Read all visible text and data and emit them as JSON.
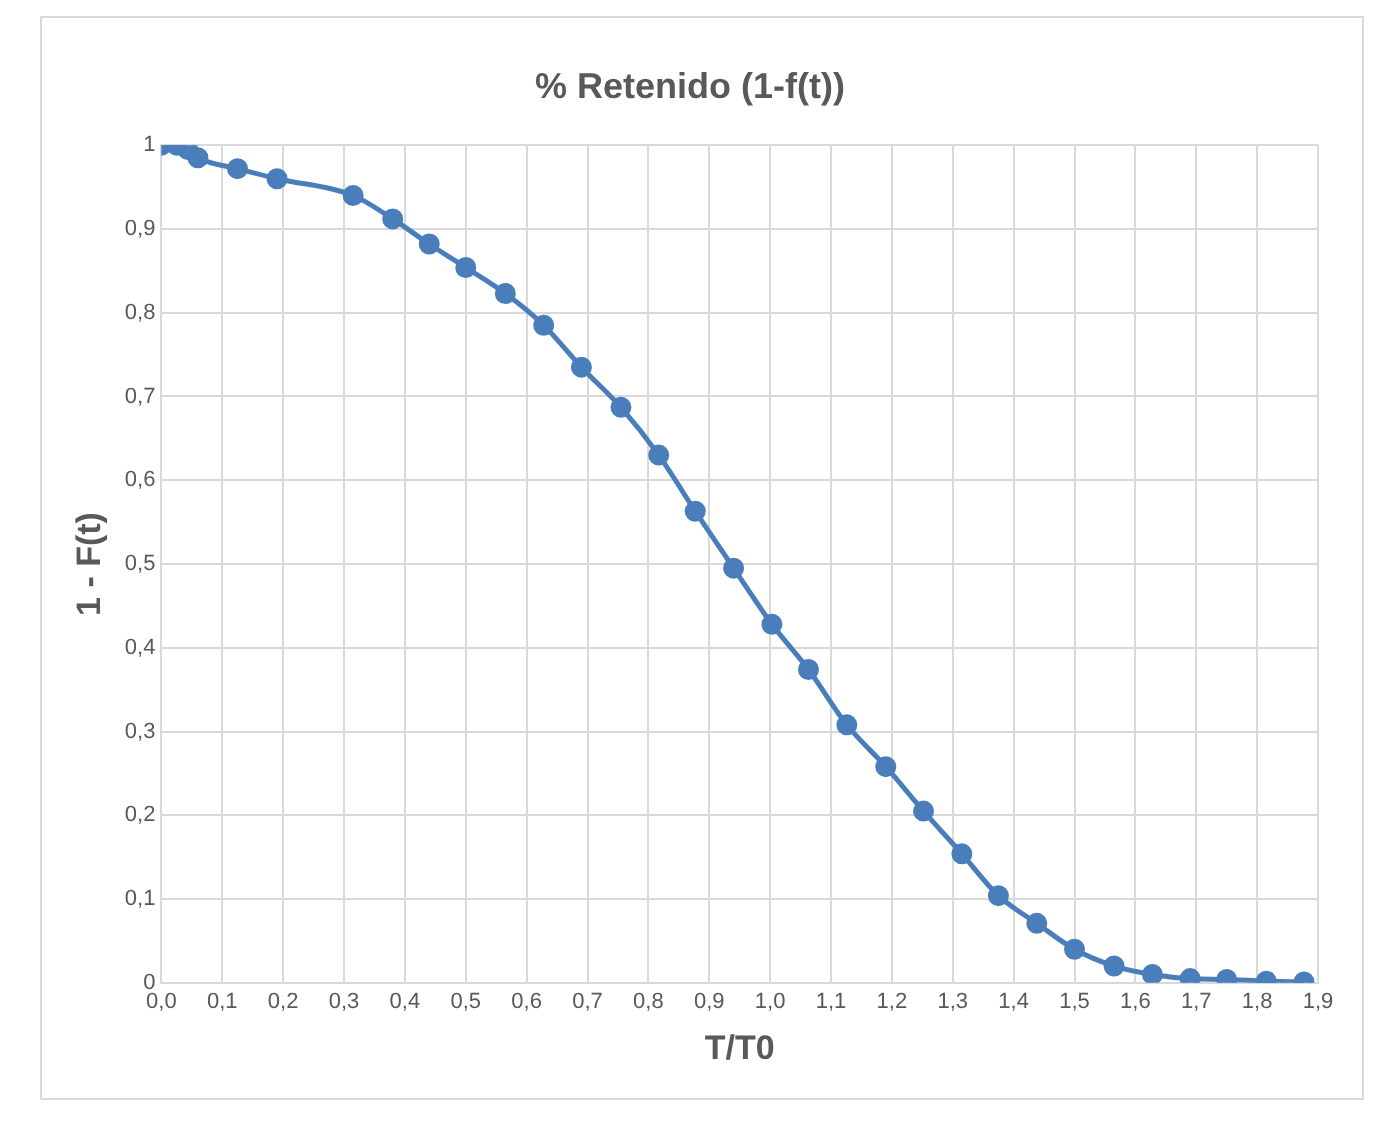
{
  "chart_data": {
    "type": "line",
    "title": "% Retenido (1-f(t))",
    "xlabel": "T/T0",
    "ylabel": "1 - F(t)",
    "x": [
      0,
      0.025,
      0.043,
      0.06,
      0.125,
      0.19,
      0.315,
      0.38,
      0.44,
      0.5,
      0.565,
      0.628,
      0.69,
      0.755,
      0.817,
      0.877,
      0.94,
      1.003,
      1.063,
      1.126,
      1.19,
      1.252,
      1.315,
      1.375,
      1.438,
      1.5,
      1.565,
      1.628,
      1.69,
      1.75,
      1.815,
      1.877
    ],
    "series": [
      {
        "color": "#4a7ebb",
        "values": [
          1,
          1,
          0.995,
          0.985,
          0.972,
          0.96,
          0.94,
          0.912,
          0.882,
          0.854,
          0.823,
          0.785,
          0.735,
          0.687,
          0.63,
          0.563,
          0.495,
          0.428,
          0.374,
          0.308,
          0.258,
          0.205,
          0.154,
          0.104,
          0.071,
          0.04,
          0.02,
          0.01,
          0.005,
          0.004,
          0.002,
          0.001
        ]
      }
    ],
    "xlim": [
      0,
      1.9
    ],
    "xticks": [
      {
        "value": 0,
        "label": "0,0"
      },
      {
        "value": 0.1,
        "label": "0,1"
      },
      {
        "value": 0.2,
        "label": "0,2"
      },
      {
        "value": 0.3,
        "label": "0,3"
      },
      {
        "value": 0.4,
        "label": "0,4"
      },
      {
        "value": 0.5,
        "label": "0,5"
      },
      {
        "value": 0.6,
        "label": "0,6"
      },
      {
        "value": 0.7,
        "label": "0,7"
      },
      {
        "value": 0.8,
        "label": "0,8"
      },
      {
        "value": 0.9,
        "label": "0,9"
      },
      {
        "value": 1,
        "label": "1,0"
      },
      {
        "value": 1.1,
        "label": "1,1"
      },
      {
        "value": 1.2,
        "label": "1,2"
      },
      {
        "value": 1.3,
        "label": "1,3"
      },
      {
        "value": 1.4,
        "label": "1,4"
      },
      {
        "value": 1.5,
        "label": "1,5"
      },
      {
        "value": 1.6,
        "label": "1,6"
      },
      {
        "value": 1.7,
        "label": "1,7"
      },
      {
        "value": 1.8,
        "label": "1,8"
      },
      {
        "value": 1.9,
        "label": "1,9"
      }
    ],
    "ylim": [
      0,
      1
    ],
    "yticks": [
      0,
      {
        "value": 0.1,
        "label": "0,1"
      },
      {
        "value": 0.2,
        "label": "0,2"
      },
      {
        "value": 0.3,
        "label": "0,3"
      },
      {
        "value": 0.4,
        "label": "0,4"
      },
      {
        "value": 0.5,
        "label": "0,5"
      },
      {
        "value": 0.6,
        "label": "0,6"
      },
      {
        "value": 0.7,
        "label": "0,7"
      },
      {
        "value": 0.8,
        "label": "0,8"
      },
      {
        "value": 0.9,
        "label": "0,9"
      },
      1
    ],
    "grid": true,
    "legend": false,
    "marker": "circle",
    "line_style": "solid"
  }
}
